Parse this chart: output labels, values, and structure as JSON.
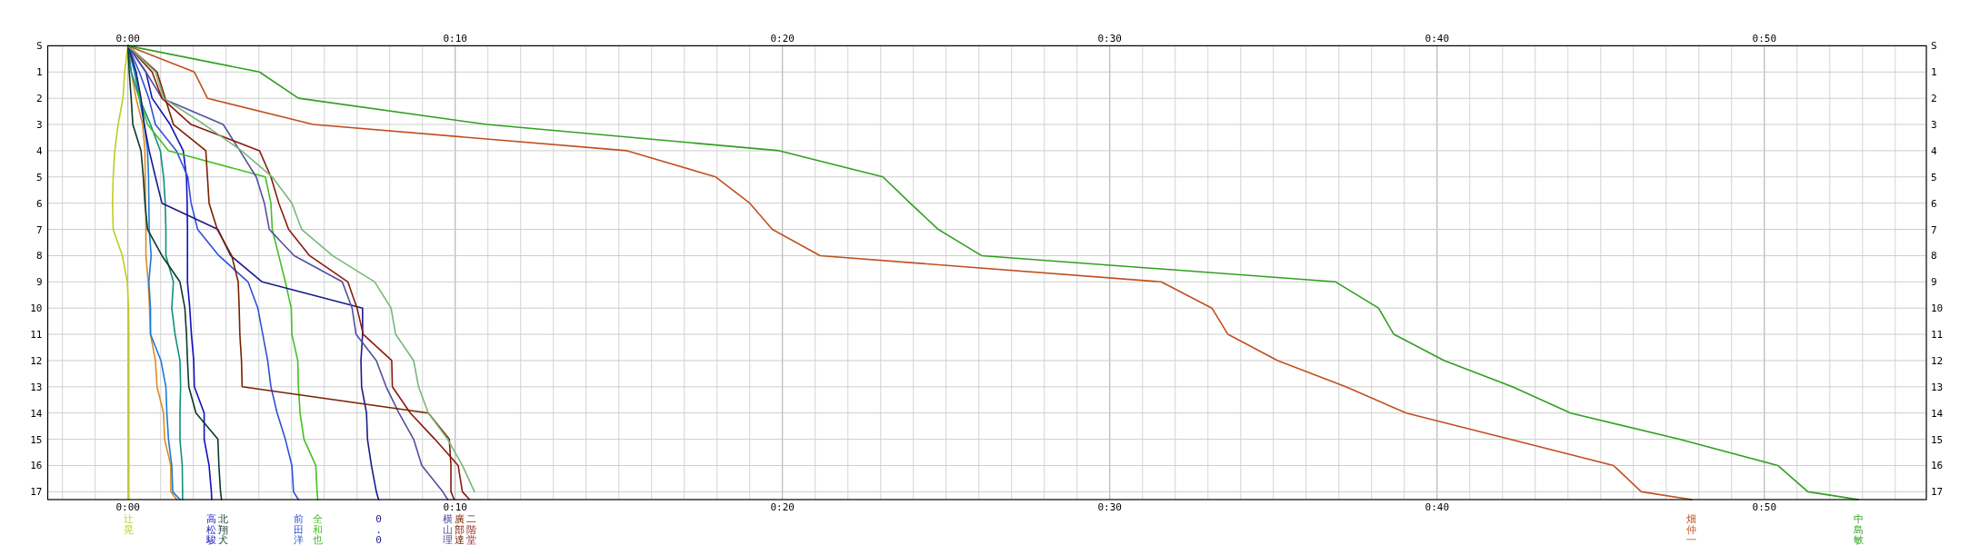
{
  "chart_data": {
    "type": "line",
    "grid": true,
    "xlim": [
      -2.45,
      54.95
    ],
    "xticks": [
      {
        "value": -2,
        "label": null
      },
      {
        "value": -1,
        "label": null
      },
      {
        "value": 0,
        "label": "0:00"
      },
      {
        "value": 1,
        "label": null
      },
      {
        "value": 2,
        "label": null
      },
      {
        "value": 3,
        "label": null
      },
      {
        "value": 4,
        "label": null
      },
      {
        "value": 5,
        "label": null
      },
      {
        "value": 6,
        "label": null
      },
      {
        "value": 7,
        "label": null
      },
      {
        "value": 8,
        "label": null
      },
      {
        "value": 9,
        "label": null
      },
      {
        "value": 10,
        "label": "0:10"
      },
      {
        "value": 11,
        "label": null
      },
      {
        "value": 12,
        "label": null
      },
      {
        "value": 13,
        "label": null
      },
      {
        "value": 14,
        "label": null
      },
      {
        "value": 15,
        "label": null
      },
      {
        "value": 16,
        "label": null
      },
      {
        "value": 17,
        "label": null
      },
      {
        "value": 18,
        "label": null
      },
      {
        "value": 19,
        "label": null
      },
      {
        "value": 20,
        "label": "0:20"
      },
      {
        "value": 21,
        "label": null
      },
      {
        "value": 22,
        "label": null
      },
      {
        "value": 23,
        "label": null
      },
      {
        "value": 24,
        "label": null
      },
      {
        "value": 25,
        "label": null
      },
      {
        "value": 26,
        "label": null
      },
      {
        "value": 27,
        "label": null
      },
      {
        "value": 28,
        "label": null
      },
      {
        "value": 29,
        "label": null
      },
      {
        "value": 30,
        "label": "0:30"
      },
      {
        "value": 31,
        "label": null
      },
      {
        "value": 32,
        "label": null
      },
      {
        "value": 33,
        "label": null
      },
      {
        "value": 34,
        "label": null
      },
      {
        "value": 35,
        "label": null
      },
      {
        "value": 36,
        "label": null
      },
      {
        "value": 37,
        "label": null
      },
      {
        "value": 38,
        "label": null
      },
      {
        "value": 39,
        "label": null
      },
      {
        "value": 40,
        "label": "0:40"
      },
      {
        "value": 41,
        "label": null
      },
      {
        "value": 42,
        "label": null
      },
      {
        "value": 43,
        "label": null
      },
      {
        "value": 44,
        "label": null
      },
      {
        "value": 45,
        "label": null
      },
      {
        "value": 46,
        "label": null
      },
      {
        "value": 47,
        "label": null
      },
      {
        "value": 48,
        "label": null
      },
      {
        "value": 49,
        "label": null
      },
      {
        "value": 50,
        "label": "0:50"
      },
      {
        "value": 51,
        "label": null
      },
      {
        "value": 52,
        "label": null
      },
      {
        "value": 53,
        "label": null
      },
      {
        "value": 54,
        "label": null
      }
    ],
    "x2lim": [
      -2.45,
      54.95
    ],
    "x2ticks": [
      {
        "value": 0,
        "label": "0:00"
      },
      {
        "value": 10,
        "label": "0:10"
      },
      {
        "value": 20,
        "label": "0:20"
      },
      {
        "value": 30,
        "label": "0:30"
      },
      {
        "value": 40,
        "label": "0:40"
      },
      {
        "value": 50,
        "label": "0:50"
      }
    ],
    "ylim": [
      17.3,
      0
    ],
    "yticks": [
      {
        "value": 0,
        "label": "S"
      },
      1,
      2,
      3,
      4,
      5,
      6,
      7,
      8,
      9,
      10,
      11,
      12,
      13,
      14,
      15,
      16,
      17
    ],
    "y2lim": [
      17.3,
      0
    ],
    "y2ticks": [
      {
        "value": 0,
        "label": "S"
      },
      1,
      2,
      3,
      4,
      5,
      6,
      7,
      8,
      9,
      10,
      11,
      12,
      13,
      14,
      15,
      16,
      17
    ],
    "series": [
      {
        "name": "辻晃",
        "color": "#c0cc20",
        "x": [
          0,
          -0.1,
          -0.15,
          -0.3,
          -0.4,
          -0.45,
          -0.47,
          -0.45,
          -0.17,
          -0.02,
          0.02,
          0.03,
          0.03,
          0.03,
          0.03,
          0.03,
          0.03,
          0.03,
          0.03
        ],
        "values": [
          0,
          1,
          2,
          3,
          4,
          5,
          6,
          7,
          8,
          9,
          10,
          11,
          12,
          13,
          14,
          15,
          16,
          17,
          17.3
        ]
      },
      {
        "color": "#e08a20",
        "x": [
          0,
          0.1,
          0.25,
          0.45,
          0.52,
          0.53,
          0.54,
          0.55,
          0.55,
          0.62,
          0.66,
          0.69,
          0.84,
          0.89,
          1.09,
          1.12,
          1.31,
          1.31,
          1.49
        ],
        "values": [
          0,
          1,
          2,
          3,
          4,
          5,
          6,
          7,
          8,
          9,
          10,
          11,
          12,
          13,
          14,
          15,
          16,
          17,
          17.3
        ]
      },
      {
        "color": "#1a7ad8",
        "x": [
          0,
          0.2,
          0.35,
          0.5,
          0.6,
          0.63,
          0.64,
          0.65,
          0.71,
          0.64,
          0.69,
          0.69,
          1.01,
          1.16,
          1.19,
          1.24,
          1.34,
          1.37,
          1.59
        ],
        "values": [
          0,
          1,
          2,
          3,
          4,
          5,
          6,
          7,
          8,
          9,
          10,
          11,
          12,
          13,
          14,
          15,
          16,
          17,
          17.3
        ]
      },
      {
        "color": "#10907a",
        "x": [
          0,
          0.1,
          0.35,
          0.69,
          0.99,
          1.09,
          1.14,
          1.16,
          1.16,
          1.39,
          1.34,
          1.44,
          1.59,
          1.61,
          1.59,
          1.59,
          1.66,
          1.67,
          1.67
        ],
        "values": [
          0,
          1,
          2,
          3,
          4,
          5,
          6,
          7,
          8,
          9,
          10,
          11,
          12,
          13,
          14,
          15,
          16,
          17,
          17.3
        ]
      },
      {
        "name": "高松駿",
        "color": "#1010c0",
        "x": [
          0,
          0.55,
          0.74,
          1.29,
          1.69,
          1.79,
          1.81,
          1.82,
          1.82,
          1.82,
          1.89,
          1.94,
          2.01,
          2.03,
          2.33,
          2.33,
          2.48,
          2.55,
          2.56
        ],
        "values": [
          0,
          1,
          2,
          3,
          4,
          5,
          6,
          7,
          8,
          9,
          10,
          11,
          12,
          13,
          14,
          15,
          16,
          17,
          17.3
        ]
      },
      {
        "name": "北翔犬",
        "color": "#0a3a2a",
        "x": [
          0,
          0.04,
          0.1,
          0.15,
          0.4,
          0.47,
          0.52,
          0.6,
          1.04,
          1.59,
          1.74,
          1.79,
          1.82,
          1.86,
          2.08,
          2.75,
          2.78,
          2.83,
          2.86
        ],
        "values": [
          0,
          1,
          2,
          3,
          4,
          5,
          6,
          7,
          8,
          9,
          10,
          11,
          12,
          13,
          14,
          15,
          16,
          17,
          17.3
        ]
      },
      {
        "name": "前田洋",
        "color": "#3050d8",
        "x": [
          0,
          0.35,
          0.64,
          0.84,
          1.48,
          1.83,
          1.93,
          2.13,
          2.78,
          3.67,
          3.97,
          4.12,
          4.27,
          4.37,
          4.56,
          4.81,
          5.01,
          5.06,
          5.21
        ],
        "values": [
          0,
          1,
          2,
          3,
          4,
          5,
          6,
          7,
          8,
          9,
          10,
          11,
          12,
          13,
          14,
          15,
          16,
          17,
          17.3
        ]
      },
      {
        "name": "全和也",
        "color": "#40c020",
        "x": [
          0,
          0.25,
          0.35,
          0.6,
          1.24,
          4.2,
          4.37,
          4.41,
          4.61,
          4.81,
          4.99,
          5.01,
          5.19,
          5.21,
          5.26,
          5.38,
          5.74,
          5.78,
          5.8
        ],
        "values": [
          0,
          1,
          2,
          3,
          4,
          5,
          6,
          7,
          8,
          9,
          10,
          11,
          12,
          13,
          14,
          15,
          16,
          17,
          17.3
        ]
      },
      {
        "name": "0.0",
        "color": "#1a1a8c",
        "x": [
          0,
          0.25,
          0.4,
          0.5,
          0.65,
          0.84,
          1.04,
          2.75,
          3.14,
          4.1,
          7.17,
          7.17,
          7.12,
          7.14,
          7.29,
          7.32,
          7.44,
          7.59,
          7.66
        ],
        "values": [
          0,
          1,
          2,
          3,
          4,
          5,
          6,
          7,
          8,
          9,
          10,
          11,
          12,
          13,
          14,
          15,
          16,
          17,
          17.3
        ]
      },
      {
        "name": "横山理",
        "color": "#5050a0",
        "x": [
          0,
          0.55,
          1.04,
          2.91,
          3.42,
          3.92,
          4.17,
          4.32,
          5.08,
          6.55,
          6.85,
          6.97,
          7.59,
          7.89,
          8.28,
          8.73,
          8.98,
          9.62,
          9.77
        ],
        "values": [
          0,
          1,
          2,
          3,
          4,
          5,
          6,
          7,
          8,
          9,
          10,
          11,
          12,
          13,
          14,
          15,
          16,
          17,
          17.3
        ]
      },
      {
        "name": "廣部達",
        "color": "#7a2000",
        "x": [
          0,
          0.89,
          1.14,
          1.39,
          2.38,
          2.43,
          2.48,
          2.73,
          3.17,
          3.37,
          3.4,
          3.42,
          3.47,
          3.49,
          9.18,
          9.82,
          9.87,
          9.87,
          9.97
        ],
        "values": [
          0,
          1,
          2,
          3,
          4,
          5,
          6,
          7,
          8,
          9,
          10,
          11,
          12,
          13,
          14,
          15,
          16,
          17,
          17.3
        ]
      },
      {
        "name": "二階堂",
        "color": "#8a1a10",
        "x": [
          0,
          0.74,
          1.04,
          1.93,
          4.02,
          4.37,
          4.61,
          4.91,
          5.55,
          6.72,
          7.0,
          7.19,
          8.06,
          8.08,
          8.63,
          9.38,
          10.09,
          10.22,
          10.44
        ],
        "values": [
          0,
          1,
          2,
          3,
          4,
          5,
          6,
          7,
          8,
          9,
          10,
          11,
          12,
          13,
          14,
          15,
          16,
          17,
          17.3
        ]
      },
      {
        "color": "#78b878",
        "x": [
          0,
          0.84,
          1.09,
          2.33,
          3.47,
          4.41,
          5.01,
          5.31,
          6.25,
          7.54,
          8.04,
          8.18,
          8.73,
          8.88,
          9.18,
          9.77,
          10.22,
          10.59
        ],
        "values": [
          0,
          1,
          2,
          3,
          4,
          5,
          6,
          7,
          8,
          9,
          10,
          11,
          12,
          13,
          14,
          15,
          16,
          17
        ]
      },
      {
        "name": "畑仲一",
        "color": "#c05020",
        "x": [
          0,
          2.03,
          2.43,
          5.66,
          15.25,
          17.96,
          19.0,
          19.69,
          21.15,
          31.57,
          33.12,
          33.61,
          35.13,
          37.21,
          39.06,
          42.22,
          45.39,
          46.24,
          47.78
        ],
        "values": [
          0,
          1,
          2,
          3,
          4,
          5,
          6,
          7,
          8,
          9,
          10,
          11,
          12,
          13,
          14,
          15,
          16,
          17,
          17.3
        ]
      },
      {
        "name": "中島敏",
        "color": "#30a020",
        "x": [
          0,
          4.02,
          5.21,
          10.97,
          19.9,
          23.07,
          23.9,
          24.76,
          26.08,
          36.9,
          38.21,
          38.68,
          40.22,
          42.3,
          44.08,
          47.4,
          50.41,
          51.33,
          52.87
        ],
        "values": [
          0,
          1,
          2,
          3,
          4,
          5,
          6,
          7,
          8,
          9,
          10,
          11,
          12,
          13,
          14,
          15,
          16,
          17,
          17.3
        ]
      }
    ]
  }
}
